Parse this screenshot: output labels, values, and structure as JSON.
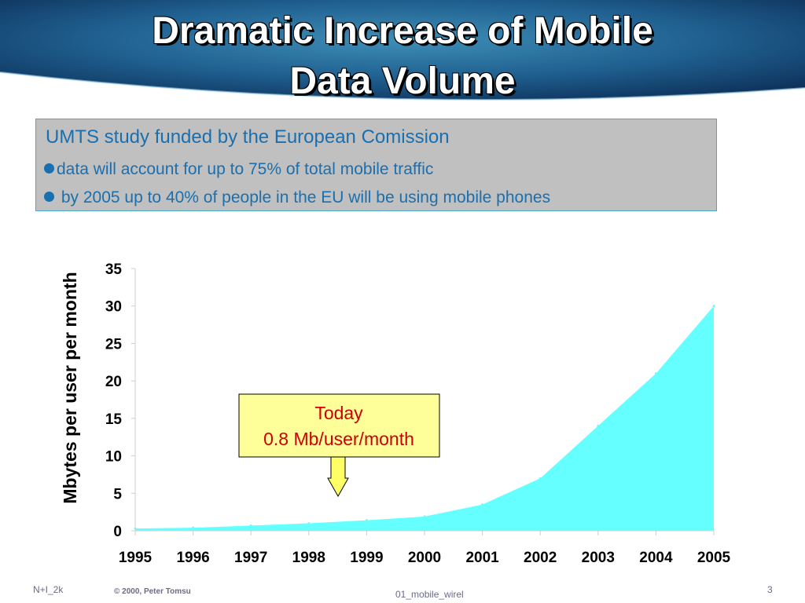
{
  "slide": {
    "title_line1": "Dramatic Increase of Mobile",
    "title_line2": "Data Volume"
  },
  "info_box": {
    "heading": "UMTS study funded by the European Comission",
    "bullets": [
      "data will  account for up to 75% of total mobile traffic",
      " by 2005 up to 40% of people in the EU will be using mobile phones"
    ]
  },
  "callout": {
    "line1": "Today",
    "line2": "0.8 Mb/user/month"
  },
  "footer": {
    "left": "N+I_2k",
    "copyright": "© 2000, Peter Tomsu",
    "center": "01_mobile_wirel",
    "page": "3"
  },
  "colors": {
    "area_fill": "#66ffff",
    "callout_bg": "#ffff99",
    "callout_text": "#cc0000",
    "arrow_fill": "#ffff66",
    "text_blue": "#1a6fae"
  },
  "chart_data": {
    "type": "area",
    "title": "",
    "xlabel": "",
    "ylabel": "Mbytes per user per month",
    "x": [
      "1995",
      "1996",
      "1997",
      "1998",
      "1999",
      "2000",
      "2001",
      "2002",
      "2003",
      "2004",
      "2005"
    ],
    "series": [
      {
        "values": [
          0.3,
          0.4,
          0.7,
          1.0,
          1.4,
          1.9,
          3.5,
          7.0,
          14.0,
          21.0,
          30.0
        ]
      }
    ],
    "yticks": [
      0,
      5,
      10,
      15,
      20,
      25,
      30,
      35
    ],
    "ylim": [
      0,
      35
    ],
    "grid": false,
    "legend": "none",
    "annotation": {
      "text": [
        "Today",
        "0.8 Mb/user/month"
      ],
      "points_to_x": "1998.5"
    }
  }
}
